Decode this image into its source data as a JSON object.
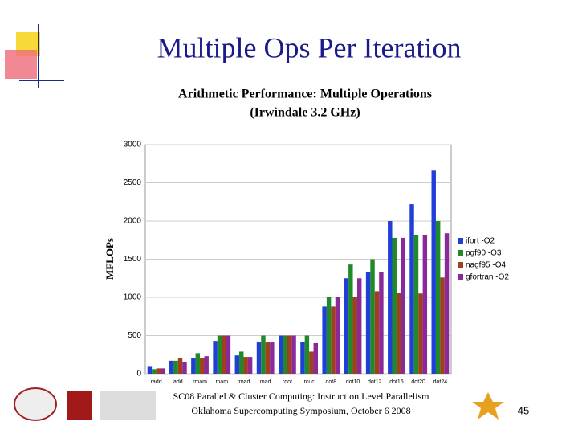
{
  "slide_title": "Multiple Ops Per Iteration",
  "footer": [
    "SC08 Parallel & Cluster Computing: Instruction Level Parallelism",
    "Oklahoma Supercomputing Symposium, October 6 2008"
  ],
  "page_number": "45",
  "chart_data": {
    "type": "bar",
    "title": [
      "Arithmetic Performance: Multiple Operations",
      "(Irwindale 3.2 GHz)"
    ],
    "ylabel": "MFLOPs",
    "categories": [
      "radd",
      "add",
      "rmam",
      "mam",
      "rmad",
      "mad",
      "rdot",
      "rcuc",
      "dot8",
      "dot10",
      "dot12",
      "dot16",
      "dot20",
      "dot24"
    ],
    "series": [
      {
        "name": "ifort -O2",
        "color": "#1f3fd6",
        "values": [
          90,
          170,
          210,
          430,
          240,
          410,
          500,
          420,
          880,
          1250,
          1330,
          2000,
          2220,
          2660
        ]
      },
      {
        "name": "pgf90 -O3",
        "color": "#1e8a2a",
        "values": [
          60,
          170,
          270,
          500,
          290,
          500,
          500,
          500,
          1000,
          1430,
          1500,
          1780,
          1820,
          2000
        ]
      },
      {
        "name": "nagf95 -O4",
        "color": "#a0401e",
        "values": [
          70,
          200,
          210,
          500,
          220,
          410,
          500,
          290,
          880,
          1000,
          1080,
          1060,
          1050,
          1260
        ]
      },
      {
        "name": "gfortran -O2",
        "color": "#8a2a9a",
        "values": [
          70,
          150,
          230,
          500,
          220,
          410,
          500,
          400,
          1000,
          1250,
          1330,
          1780,
          1820,
          1840
        ]
      }
    ],
    "ylim": [
      0,
      3000
    ],
    "yticks": [
      0,
      500,
      1000,
      1500,
      2000,
      2500,
      3000
    ],
    "grid": true,
    "legend": "right"
  }
}
